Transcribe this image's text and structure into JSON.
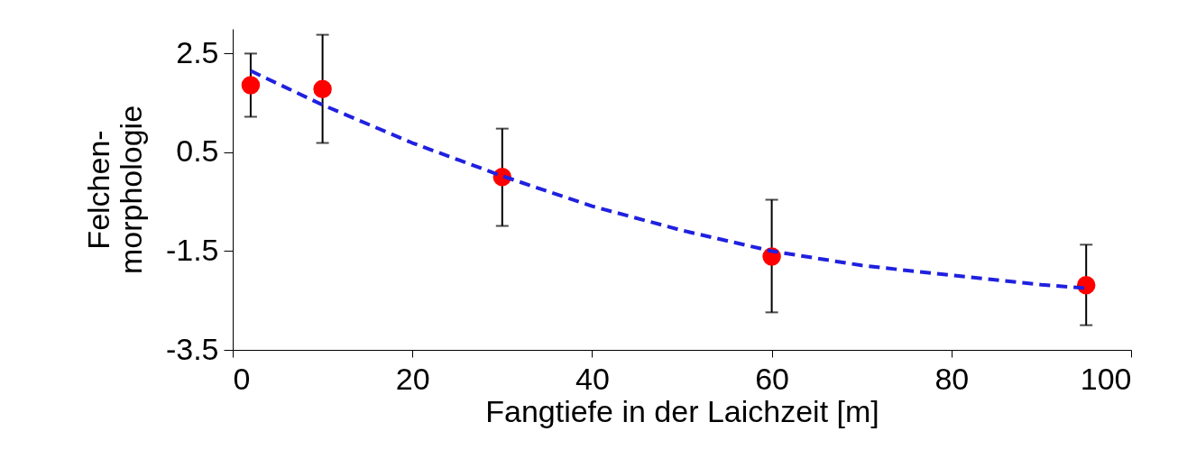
{
  "chart_data": {
    "type": "scatter",
    "xlabel": "Fangtiefe in der Laichzeit [m]",
    "ylabel": "Felchen-\nmorphologie",
    "xlim": [
      0,
      100
    ],
    "xticks": [
      0,
      20,
      40,
      60,
      80,
      100
    ],
    "ylim": [
      -3.5,
      3.0
    ],
    "yticks": [
      2.5,
      0.5,
      -1.5,
      -3.5
    ],
    "grid": false,
    "series": [
      {
        "type": "scatter",
        "color": "#ff0000",
        "marker": "circle",
        "x": [
          2,
          10,
          30,
          60,
          95
        ],
        "values": [
          1.86,
          1.78,
          0.0,
          -1.61,
          -2.19
        ],
        "errors": [
          [
            1.22,
            2.5
          ],
          [
            0.69,
            2.88
          ],
          [
            -0.99,
            0.98
          ],
          [
            -2.74,
            -0.46
          ],
          [
            -3.0,
            -1.37
          ]
        ]
      },
      {
        "type": "line",
        "color": "#2020e0",
        "line_style": "dashed",
        "marker": "none",
        "x": [
          2,
          10,
          20,
          30,
          40,
          50,
          60,
          70,
          80,
          90,
          95
        ],
        "values": [
          2.15,
          1.46,
          0.69,
          0.02,
          -0.59,
          -1.08,
          -1.5,
          -1.79,
          -1.99,
          -2.18,
          -2.25
        ]
      }
    ]
  }
}
